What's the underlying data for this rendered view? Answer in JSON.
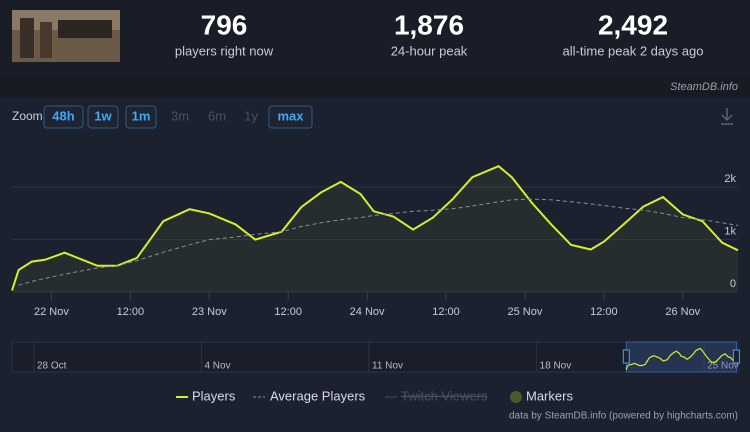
{
  "header": {
    "stats": [
      {
        "value": "796",
        "label": "players right now"
      },
      {
        "value": "1,876",
        "label": "24-hour peak"
      },
      {
        "value": "2,492",
        "label": "all-time peak 2 days ago"
      }
    ],
    "source": "SteamDB.info"
  },
  "zoom": {
    "label": "Zoom",
    "buttons": [
      "48h",
      "1w",
      "1m",
      "3m",
      "6m",
      "1y",
      "max"
    ]
  },
  "chart_data": {
    "type": "line",
    "x": [
      -6,
      -5,
      -3,
      -1,
      2,
      4,
      7,
      10,
      13,
      15,
      17,
      21,
      24,
      28,
      31,
      35,
      38,
      41,
      44,
      47,
      49,
      52,
      55,
      58,
      61,
      64,
      68,
      70,
      73,
      76,
      79,
      82,
      84,
      87,
      90,
      93,
      96,
      99,
      102,
      104.4
    ],
    "series": [
      {
        "name": "Players",
        "color": "#d4f02a",
        "values": [
          30,
          420,
          580,
          615,
          750,
          650,
          500,
          500,
          650,
          1000,
          1350,
          1580,
          1500,
          1290,
          1000,
          1150,
          1620,
          1900,
          2100,
          1870,
          1540,
          1440,
          1190,
          1420,
          1770,
          2190,
          2400,
          2190,
          1710,
          1290,
          900,
          810,
          960,
          1290,
          1630,
          1810,
          1480,
          1350,
          940,
          796
        ]
      },
      {
        "name": "Average Players",
        "color": "#8a8f99",
        "values": [
          null,
          130,
          200,
          260,
          340,
          390,
          460,
          500,
          600,
          680,
          760,
          900,
          1000,
          1050,
          1100,
          1150,
          1250,
          1320,
          1380,
          1420,
          1460,
          1500,
          1540,
          1560,
          1590,
          1640,
          1720,
          1760,
          1770,
          1760,
          1720,
          1680,
          1650,
          1600,
          1560,
          1500,
          1420,
          1380,
          1320,
          1270
        ]
      }
    ],
    "xlim": [
      -6,
      104.4
    ],
    "xticks": [
      {
        "value": 0,
        "label": "22 Nov"
      },
      {
        "value": 12,
        "label": "12:00"
      },
      {
        "value": 24,
        "label": "23 Nov"
      },
      {
        "value": 36,
        "label": "12:00"
      },
      {
        "value": 48,
        "label": "24 Nov"
      },
      {
        "value": 60,
        "label": "12:00"
      },
      {
        "value": 72,
        "label": "25 Nov"
      },
      {
        "value": 84,
        "label": "12:00"
      },
      {
        "value": 96,
        "label": "26 Nov"
      }
    ],
    "ylim": [
      0,
      2900
    ],
    "yticks": [
      0,
      {
        "value": 1000,
        "label": "1k"
      },
      {
        "value": 2000,
        "label": "2k"
      }
    ],
    "grid": true
  },
  "navigator": {
    "xlim": [
      -622,
      106
    ],
    "xticks": [
      {
        "value": -600,
        "label": "28 Oct"
      },
      {
        "value": -432,
        "label": "4 Nov"
      },
      {
        "value": -264,
        "label": "11 Nov"
      },
      {
        "value": -96,
        "label": "18 Nov"
      },
      {
        "value": 72,
        "label": "25 Nov"
      }
    ]
  },
  "legend_extra": [
    {
      "name": "Twitch Viewers",
      "hidden": true
    },
    {
      "name": "Markers",
      "color": "#4b5a2a"
    }
  ],
  "credits": "data by SteamDB.info (powered by highcharts.com)"
}
